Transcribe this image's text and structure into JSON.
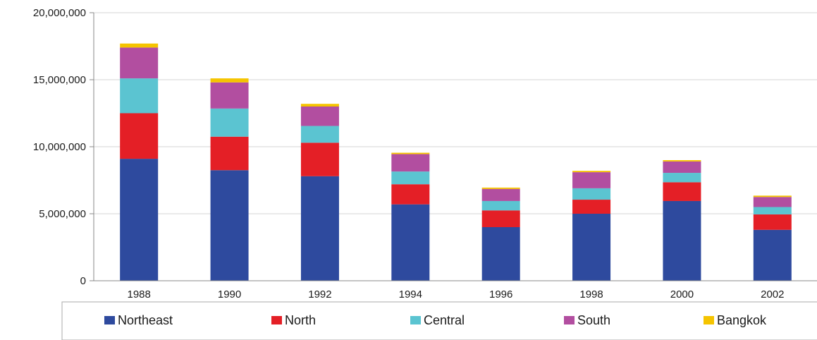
{
  "chart_data": {
    "type": "bar",
    "stacked": true,
    "title": "",
    "xlabel": "",
    "ylabel": "",
    "categories": [
      "1988",
      "1990",
      "1992",
      "1994",
      "1996",
      "1998",
      "2000",
      "2002"
    ],
    "ylim": [
      0,
      20000000
    ],
    "yticks": [
      0,
      5000000,
      10000000,
      15000000,
      20000000
    ],
    "ytick_labels": [
      "0",
      "5,000,000",
      "10,000,000",
      "15,000,000",
      "20,000,000"
    ],
    "grid": true,
    "legend_position": "bottom",
    "series": [
      {
        "name": "Northeast",
        "color": "#2e4a9e",
        "values": [
          9100000,
          8250000,
          7800000,
          5700000,
          4000000,
          5000000,
          5950000,
          3800000
        ]
      },
      {
        "name": "North",
        "color": "#e41f26",
        "values": [
          3400000,
          2500000,
          2500000,
          1500000,
          1250000,
          1050000,
          1400000,
          1150000
        ]
      },
      {
        "name": "Central",
        "color": "#5bc4d1",
        "values": [
          2600000,
          2100000,
          1250000,
          950000,
          700000,
          850000,
          700000,
          550000
        ]
      },
      {
        "name": "South",
        "color": "#b24ea0",
        "values": [
          2300000,
          1950000,
          1450000,
          1300000,
          900000,
          1200000,
          850000,
          750000
        ]
      },
      {
        "name": "Bangkok",
        "color": "#f5c400",
        "values": [
          300000,
          300000,
          200000,
          100000,
          100000,
          100000,
          100000,
          100000
        ]
      }
    ]
  }
}
